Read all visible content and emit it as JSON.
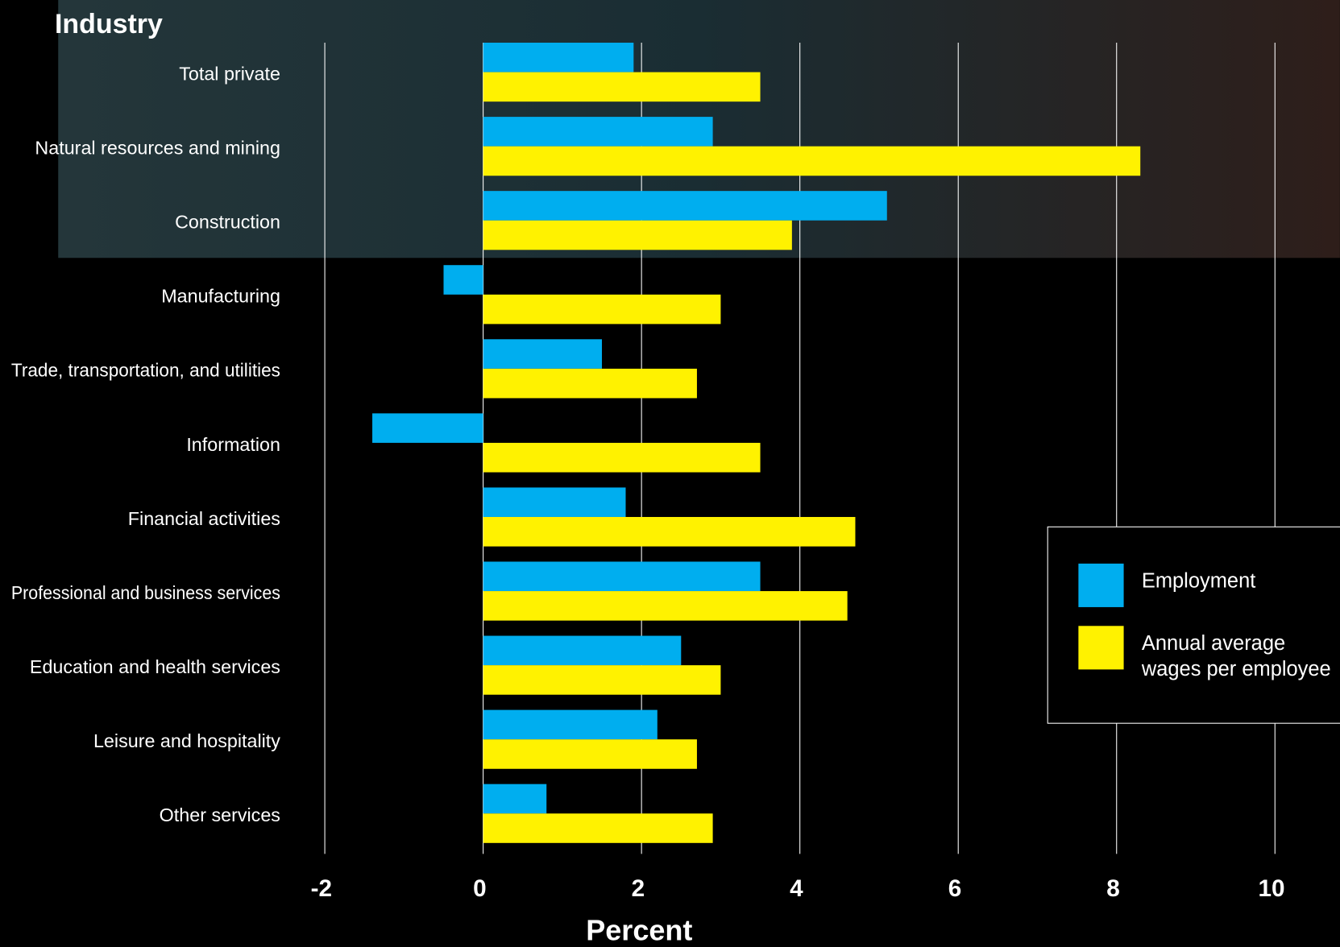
{
  "chart_data": {
    "type": "barh",
    "y_axis_label": "Industry",
    "x_axis_label": "Percent",
    "categories": [
      "Total private",
      "Natural resources and mining",
      "Construction",
      "Manufacturing",
      "Trade, transportation, and utilities",
      "Information",
      "Financial activities",
      "Professional and business services",
      "Education and health services",
      "Leisure and hospitality",
      "Other services"
    ],
    "series": [
      {
        "name": "Employment",
        "color": "#00aeef",
        "values": [
          1.9,
          2.9,
          5.1,
          -0.5,
          1.5,
          -1.4,
          1.8,
          3.5,
          2.5,
          2.2,
          0.8
        ]
      },
      {
        "name": "Annual average wages per employee",
        "color": "#fff200",
        "values": [
          3.5,
          8.3,
          3.9,
          3.0,
          2.7,
          3.5,
          4.7,
          4.6,
          3.0,
          2.7,
          2.9
        ]
      }
    ],
    "xlim": [
      -2,
      10
    ],
    "xticks": [
      -2,
      0,
      2,
      4,
      6,
      8,
      10
    ],
    "grid": true,
    "legend": "right"
  }
}
